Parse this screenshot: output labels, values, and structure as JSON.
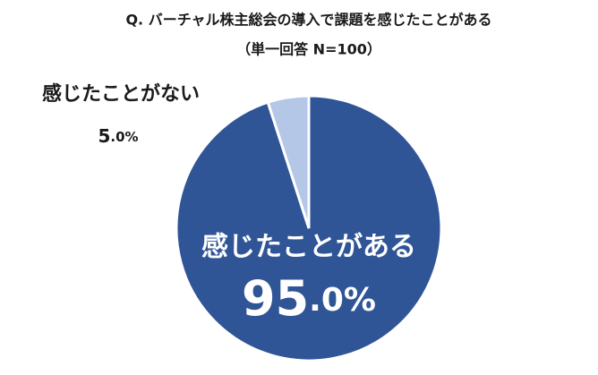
{
  "chart_data": {
    "type": "pie",
    "title": "Q. バーチャル株主総会の導入で課題を感じたことがある",
    "subtitle": "（単一回答 N=100）",
    "categories": [
      "感じたことがある",
      "感じたことがない"
    ],
    "values": [
      95,
      5
    ],
    "value_labels": [
      "95.0%",
      "5.0%"
    ],
    "colors": [
      "#2f5597",
      "#b4c7e7"
    ]
  }
}
